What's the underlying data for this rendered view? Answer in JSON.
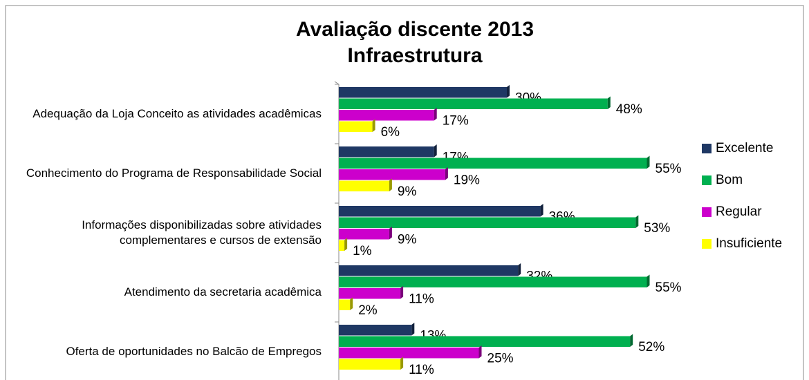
{
  "chart_data": {
    "type": "bar",
    "orientation": "horizontal",
    "title": [
      "Avaliação discente 2013",
      "Infraestrutura"
    ],
    "categories": [
      "Adequação da Loja Conceito as atividades acadêmicas",
      "Conhecimento do Programa de Responsabilidade Social",
      "Informações disponibilizadas sobre atividades complementares e cursos de extensão",
      "Atendimento da secretaria acadêmica",
      "Oferta de oportunidades no Balcão de Empregos"
    ],
    "series": [
      {
        "name": "Excelente",
        "color": "#1f3864",
        "values": [
          30,
          17,
          36,
          32,
          13
        ],
        "value_labels": [
          "30%",
          "17%",
          "36%",
          "32%",
          "13%"
        ]
      },
      {
        "name": "Bom",
        "color": "#00b050",
        "values": [
          48,
          55,
          53,
          55,
          52
        ],
        "value_labels": [
          "48%",
          "55%",
          "53%",
          "55%",
          "52%"
        ]
      },
      {
        "name": "Regular",
        "color": "#cc00cc",
        "values": [
          17,
          19,
          9,
          11,
          25
        ],
        "value_labels": [
          "17%",
          "19%",
          "9%",
          "11%",
          "25%"
        ]
      },
      {
        "name": "Insuficiente",
        "color": "#ffff00",
        "values": [
          6,
          9,
          1,
          2,
          11
        ],
        "value_labels": [
          "6%",
          "9%",
          "1%",
          "2%",
          "11%"
        ]
      }
    ],
    "legend": "right"
  }
}
